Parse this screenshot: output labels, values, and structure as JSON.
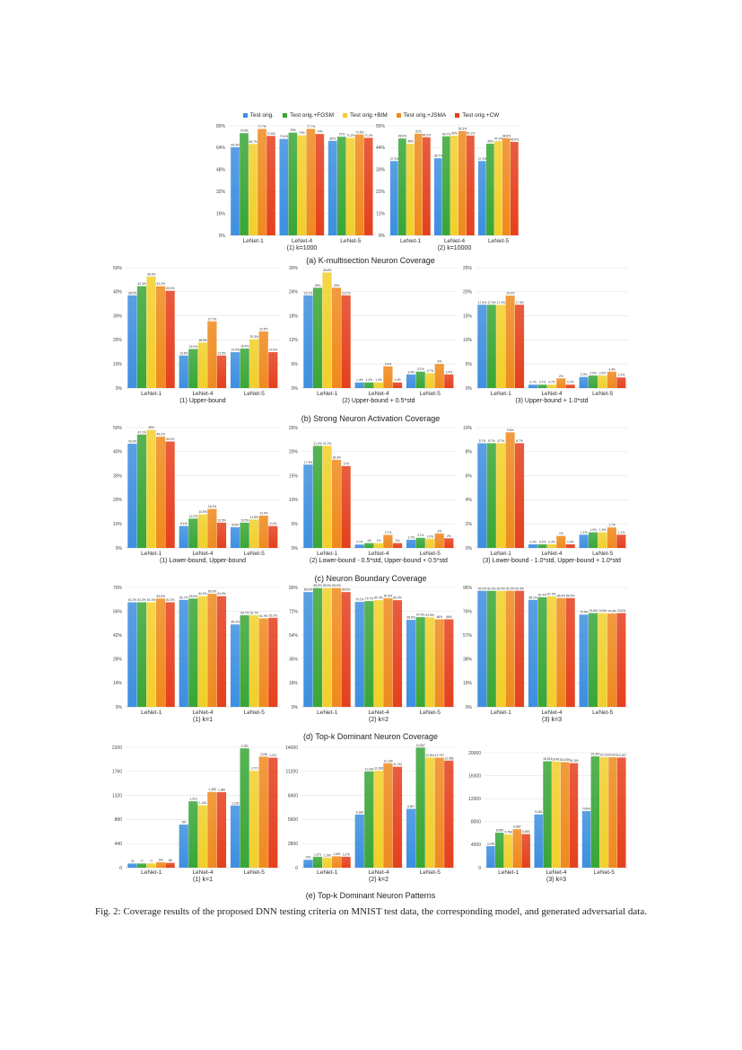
{
  "legend": [
    {
      "name": "Test orig.",
      "color": "#3d8fe0"
    },
    {
      "name": "Test orig.+FGSM",
      "color": "#3aa637"
    },
    {
      "name": "Test orig.+BIM",
      "color": "#f2cf2a"
    },
    {
      "name": "Test orig.+JSMA",
      "color": "#ef8a1e"
    },
    {
      "name": "Test orig.+CW",
      "color": "#e5401d"
    }
  ],
  "captions": {
    "a": "(a) K-multisection Neuron Coverage",
    "b": "(b) Strong Neuron Activation Coverage",
    "c": "(c) Neuron Boundary Coverage",
    "d": "(d) Top-k Dominant Neuron Coverage",
    "e": "(e) Top-k Dominant Neuron Patterns",
    "figure": "Fig. 2: Coverage results of the proposed DNN testing criteria on MNIST test data, the corresponding model, and generated adversarial data."
  },
  "chart_data": [
    {
      "type": "bar",
      "subtitle": "(1) k=1000",
      "unit": "%",
      "ylim": [
        0,
        80
      ],
      "yticks": [
        "0%",
        "16%",
        "32%",
        "48%",
        "64%",
        "80%"
      ],
      "categories": [
        "LeNet-1",
        "LeNet-4",
        "LeNet-5"
      ],
      "series": [
        {
          "name": "Test orig.",
          "values": [
            64.3,
            70.4,
            69.0
          ]
        },
        {
          "name": "Test orig.+FGSM",
          "values": [
            74.6,
            75.0,
            72
          ]
        },
        {
          "name": "Test orig.+BIM",
          "values": [
            66.7,
            73.0,
            71.2
          ]
        },
        {
          "name": "Test orig.+JSMA",
          "values": [
            77.7,
            77.7,
            73.6
          ]
        },
        {
          "name": "Test orig.+CW",
          "values": [
            72.6,
            74.0,
            71.2
          ]
        }
      ]
    },
    {
      "type": "bar",
      "subtitle": "(2) k=10000",
      "unit": "%",
      "ylim": [
        0,
        55
      ],
      "yticks": [
        "0%",
        "11%",
        "22%",
        "33%",
        "44%",
        "55%"
      ],
      "categories": [
        "LeNet-1",
        "LeNet-4",
        "LeNet-5"
      ],
      "series": [
        {
          "name": "Test orig.",
          "values": [
            37.3,
            38.7,
            37.3
          ]
        },
        {
          "name": "Test orig.+FGSM",
          "values": [
            48.6,
            49.7,
            46
          ]
        },
        {
          "name": "Test orig.+BIM",
          "values": [
            46.0,
            50.0,
            47.3
          ]
        },
        {
          "name": "Test orig.+JSMA",
          "values": [
            51.0,
            52.3,
            48.8
          ]
        },
        {
          "name": "Test orig.+CW",
          "values": [
            49.2,
            50.1,
            46.9
          ]
        }
      ]
    },
    {
      "type": "bar",
      "subtitle": "(1) Upper-bound",
      "unit": "%",
      "ylim": [
        0,
        50
      ],
      "yticks": [
        "0%",
        "10%",
        "20%",
        "30%",
        "40%",
        "50%"
      ],
      "categories": [
        "LeNet-1",
        "LeNet-4",
        "LeNet-5"
      ],
      "series": [
        {
          "name": "Test orig.",
          "values": [
            38.5,
            13.5,
            14.9
          ]
        },
        {
          "name": "Test orig.+FGSM",
          "values": [
            42.3,
            16.2,
            16.4
          ]
        },
        {
          "name": "Test orig.+BIM",
          "values": [
            46.3,
            18.9,
            20.3
          ]
        },
        {
          "name": "Test orig.+JSMA",
          "values": [
            42.3,
            27.7,
            23.5
          ]
        },
        {
          "name": "Test orig.+CW",
          "values": [
            40.4,
            13.5,
            14.9
          ]
        }
      ]
    },
    {
      "type": "bar",
      "subtitle": "(2) Upper-bound + 0.5*std",
      "unit": "%",
      "ylim": [
        0,
        30
      ],
      "yticks": [
        "0%",
        "6%",
        "12%",
        "18%",
        "24%",
        "30%"
      ],
      "categories": [
        "LeNet-1",
        "LeNet-4",
        "LeNet-5"
      ],
      "series": [
        {
          "name": "Test orig.",
          "values": [
            23.1,
            1.4,
            3.4
          ]
        },
        {
          "name": "Test orig.+FGSM",
          "values": [
            25,
            1.4,
            4.1
          ]
        },
        {
          "name": "Test orig.+BIM",
          "values": [
            28.8,
            1.4,
            3.7
          ]
        },
        {
          "name": "Test orig.+JSMA",
          "values": [
            25,
            5.4,
            6
          ]
        },
        {
          "name": "Test orig.+CW",
          "values": [
            23.1,
            1.4,
            3.4
          ]
        }
      ]
    },
    {
      "type": "bar",
      "subtitle": "(3) Upper-bound + 1.0*std",
      "unit": "%",
      "ylim": [
        0,
        25
      ],
      "yticks": [
        "0%",
        "5%",
        "10%",
        "15%",
        "20%",
        "25%"
      ],
      "categories": [
        "LeNet-1",
        "LeNet-4",
        "LeNet-5"
      ],
      "series": [
        {
          "name": "Test orig.",
          "values": [
            17.3,
            0.7,
            2.3
          ]
        },
        {
          "name": "Test orig.+FGSM",
          "values": [
            17.3,
            0.7,
            2.6
          ]
        },
        {
          "name": "Test orig.+BIM",
          "values": [
            17.3,
            0.7,
            2.6
          ]
        },
        {
          "name": "Test orig.+JSMA",
          "values": [
            19.2,
            2,
            3.4
          ]
        },
        {
          "name": "Test orig.+CW",
          "values": [
            17.3,
            0.7,
            2.2
          ]
        }
      ]
    },
    {
      "type": "bar",
      "subtitle": "(1) Lower-bound, Upper-bound",
      "unit": "%",
      "ylim": [
        0,
        50
      ],
      "yticks": [
        "0%",
        "10%",
        "20%",
        "30%",
        "40%",
        "50%"
      ],
      "categories": [
        "LeNet-1",
        "LeNet-4",
        "LeNet-5"
      ],
      "series": [
        {
          "name": "Test orig.",
          "values": [
            43.3,
            9.1,
            8.6
          ]
        },
        {
          "name": "Test orig.+FGSM",
          "values": [
            47.1,
            12.2,
            10.5
          ]
        },
        {
          "name": "Test orig.+BIM",
          "values": [
            49,
            13.9,
            11.8
          ]
        },
        {
          "name": "Test orig.+JSMA",
          "values": [
            46.2,
            16.2,
            13.4
          ]
        },
        {
          "name": "Test orig.+CW",
          "values": [
            44.2,
            10.5,
            9.1
          ]
        }
      ]
    },
    {
      "type": "bar",
      "subtitle": "(2) Lower-bound - 0.5*std, Upper-bound + 0.5*std",
      "unit": "%",
      "ylim": [
        0,
        25
      ],
      "yticks": [
        "0%",
        "5%",
        "10%",
        "15%",
        "20%",
        "25%"
      ],
      "categories": [
        "LeNet-1",
        "LeNet-4",
        "LeNet-5"
      ],
      "series": [
        {
          "name": "Test orig.",
          "values": [
            17.3,
            0.7,
            1.7
          ]
        },
        {
          "name": "Test orig.+FGSM",
          "values": [
            21.2,
            1,
            2.1
          ]
        },
        {
          "name": "Test orig.+BIM",
          "values": [
            21.2,
            1,
            1.9
          ]
        },
        {
          "name": "Test orig.+JSMA",
          "values": [
            18.3,
            2.7,
            3
          ]
        },
        {
          "name": "Test orig.+CW",
          "values": [
            17,
            1,
            2
          ]
        }
      ]
    },
    {
      "type": "bar",
      "subtitle": "(3) Lower-bound - 1.0*std, Upper-bound + 1.0*std",
      "unit": "%",
      "ylim": [
        0,
        10
      ],
      "yticks": [
        "0%",
        "2%",
        "4%",
        "6%",
        "8%",
        "10%"
      ],
      "categories": [
        "LeNet-1",
        "LeNet-4",
        "LeNet-5"
      ],
      "series": [
        {
          "name": "Test orig.",
          "values": [
            8.7,
            0.3,
            1.1
          ]
        },
        {
          "name": "Test orig.+FGSM",
          "values": [
            8.7,
            0.3,
            1.3
          ]
        },
        {
          "name": "Test orig.+BIM",
          "values": [
            8.7,
            0.3,
            1.3
          ]
        },
        {
          "name": "Test orig.+JSMA",
          "values": [
            9.6,
            1,
            1.7
          ]
        },
        {
          "name": "Test orig.+CW",
          "values": [
            8.7,
            0.3,
            1.1
          ]
        }
      ]
    },
    {
      "type": "bar",
      "subtitle": "(1) k=1",
      "unit": "%",
      "ylim": [
        0,
        70
      ],
      "yticks": [
        "0%",
        "14%",
        "28%",
        "42%",
        "56%",
        "70%"
      ],
      "categories": [
        "LeNet-1",
        "LeNet-4",
        "LeNet-5"
      ],
      "series": [
        {
          "name": "Test orig.",
          "values": [
            61.3,
            62.7,
            48.3
          ]
        },
        {
          "name": "Test orig.+FGSM",
          "values": [
            61.3,
            63.5,
            53.7
          ]
        },
        {
          "name": "Test orig.+BIM",
          "values": [
            61.3,
            64.9,
            53.7
          ]
        },
        {
          "name": "Test orig.+JSMA",
          "values": [
            63.5,
            66.3,
            51.9
          ]
        },
        {
          "name": "Test orig.+CW",
          "values": [
            61.3,
            64.9,
            52.2
          ]
        }
      ]
    },
    {
      "type": "bar",
      "subtitle": "(2) k=2",
      "unit": "%",
      "ylim": [
        0,
        90
      ],
      "yticks": [
        "0%",
        "18%",
        "36%",
        "54%",
        "72%",
        "90%"
      ],
      "categories": [
        "LeNet-1",
        "LeNet-4",
        "LeNet-5"
      ],
      "series": [
        {
          "name": "Test orig.",
          "values": [
            86.5,
            79.1,
            65.6
          ]
        },
        {
          "name": "Test orig.+FGSM",
          "values": [
            89.5,
            79.7,
            67.6
          ]
        },
        {
          "name": "Test orig.+BIM",
          "values": [
            89.5,
            80.4,
            67.5
          ]
        },
        {
          "name": "Test orig.+JSMA",
          "values": [
            89.5,
            81.8,
            66
          ]
        },
        {
          "name": "Test orig.+CW",
          "values": [
            86.5,
            80.4,
            66
          ]
        }
      ]
    },
    {
      "type": "bar",
      "subtitle": "(3) k=3",
      "unit": "%",
      "ylim": [
        0,
        95
      ],
      "yticks": [
        "0%",
        "19%",
        "38%",
        "57%",
        "76%",
        "95%"
      ],
      "categories": [
        "LeNet-1",
        "LeNet-4",
        "LeNet-5"
      ],
      "series": [
        {
          "name": "Test orig.",
          "values": [
            92.3,
            85.1,
            73.4
          ]
        },
        {
          "name": "Test orig.+FGSM",
          "values": [
            92.3,
            87.2,
            74.6
          ]
        },
        {
          "name": "Test orig.+BIM",
          "values": [
            92.3,
            87.9,
            74.6
          ]
        },
        {
          "name": "Test orig.+JSMA",
          "values": [
            92.3,
            86.5,
            74.3
          ]
        },
        {
          "name": "Test orig.+CW",
          "values": [
            92.3,
            86.5,
            74.6
          ]
        }
      ]
    },
    {
      "type": "bar",
      "subtitle": "(1) k=1",
      "unit": "",
      "ylim": [
        0,
        2200
      ],
      "yticks": [
        "0",
        "440",
        "880",
        "1320",
        "1760",
        "2200"
      ],
      "categories": [
        "LeNet-1",
        "LeNet-4",
        "LeNet-5"
      ],
      "series": [
        {
          "name": "Test orig.",
          "values": [
            76,
            787,
            1136
          ]
        },
        {
          "name": "Test orig.+FGSM",
          "values": [
            77,
            1213,
            2181
          ]
        },
        {
          "name": "Test orig.+BIM",
          "values": [
            77,
            1140,
            1770
          ]
        },
        {
          "name": "Test orig.+JSMA",
          "values": [
            100,
            1385,
            2030
          ]
        },
        {
          "name": "Test orig.+CW",
          "values": [
            88,
            1380,
            2011
          ]
        }
      ]
    },
    {
      "type": "bar",
      "subtitle": "(2) k=2",
      "unit": "",
      "ylim": [
        0,
        14000
      ],
      "yticks": [
        "0",
        "2800",
        "5600",
        "8400",
        "11200",
        "14000"
      ],
      "categories": [
        "LeNet-1",
        "LeNet-4",
        "LeNet-5"
      ],
      "series": [
        {
          "name": "Test orig.",
          "values": [
            915,
            6180,
            6847
          ]
        },
        {
          "name": "Test orig.+FGSM",
          "values": [
            1271,
            11183,
            13967
          ]
        },
        {
          "name": "Test orig.+BIM",
          "values": [
            1160,
            11268,
            12814
          ]
        },
        {
          "name": "Test orig.+JSMA",
          "values": [
            1325,
            12140,
            12797
          ]
        },
        {
          "name": "Test orig.+CW",
          "values": [
            1270,
            11742,
            12456
          ]
        }
      ]
    },
    {
      "type": "bar",
      "subtitle": "(3) k=3",
      "unit": "",
      "ylim": [
        0,
        20000
      ],
      "yticks": [
        "0",
        "4000",
        "8000",
        "12000",
        "16000",
        "20000"
      ],
      "categories": [
        "LeNet-1",
        "LeNet-4",
        "LeNet-5"
      ],
      "series": [
        {
          "name": "Test orig.",
          "values": [
            3746,
            9261,
            9844
          ]
        },
        {
          "name": "Test orig.+FGSM",
          "values": [
            6085,
            18513,
            19361
          ]
        },
        {
          "name": "Test orig.+BIM",
          "values": [
            5768,
            18461,
            19213
          ]
        },
        {
          "name": "Test orig.+JSMA",
          "values": [
            6687,
            18359,
            19201
          ]
        },
        {
          "name": "Test orig.+CW",
          "values": [
            5853,
            18184,
            19157
          ]
        }
      ]
    }
  ]
}
